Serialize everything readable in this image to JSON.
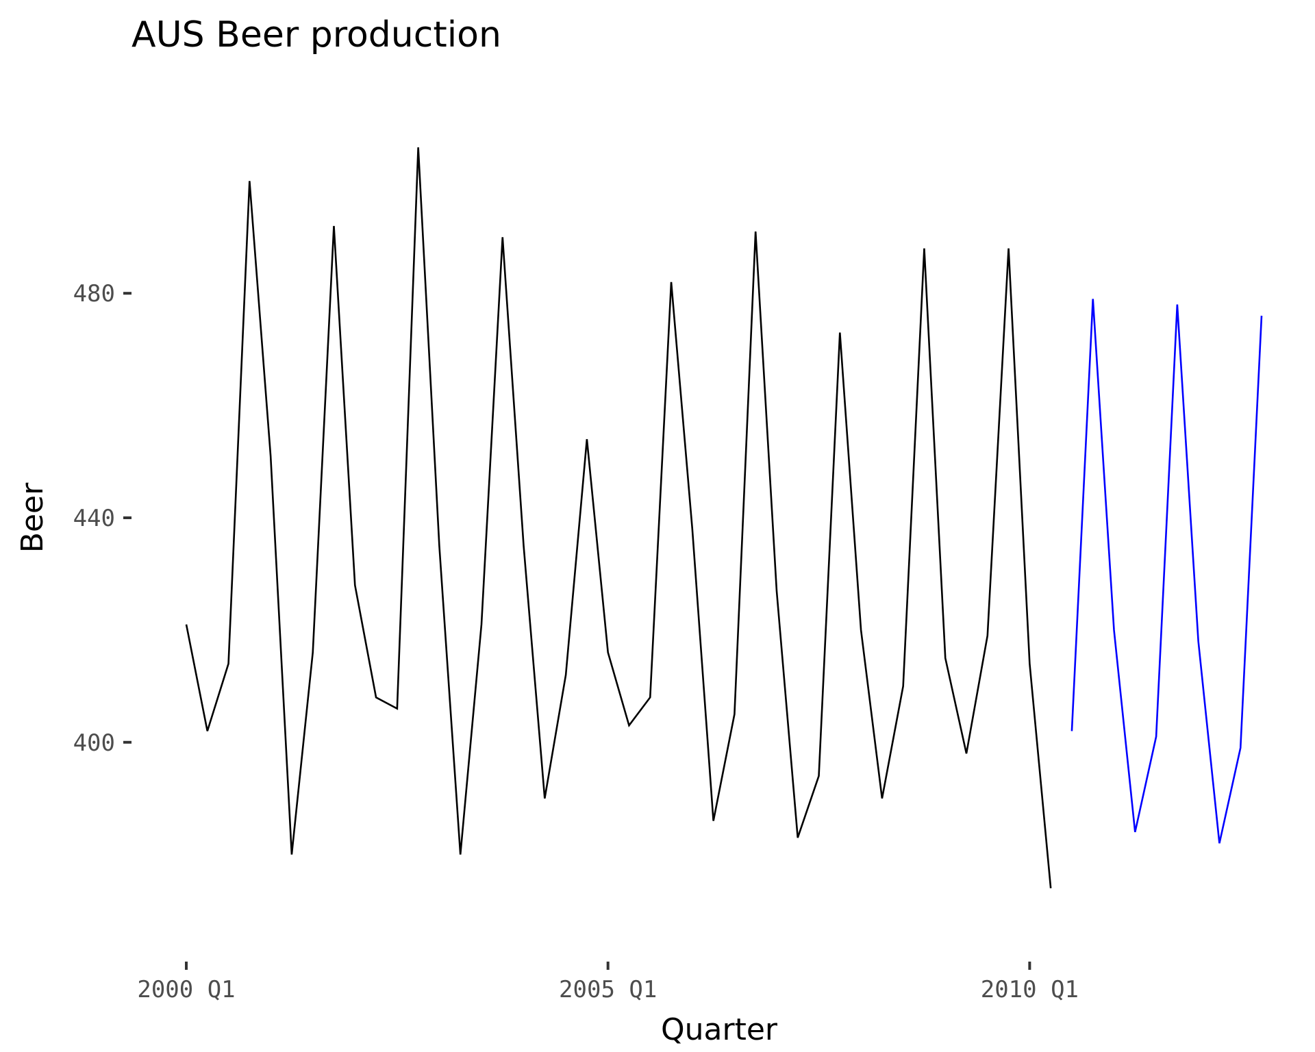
{
  "chart_data": {
    "type": "line",
    "title": "AUS Beer production",
    "xlabel": "Quarter",
    "ylabel": "Beer",
    "x_range": [
      2000.0,
      2012.75
    ],
    "ylim": [
      368,
      512
    ],
    "x_ticks": [
      {
        "value": 2000.0,
        "label": "2000 Q1"
      },
      {
        "value": 2005.0,
        "label": "2005 Q1"
      },
      {
        "value": 2010.0,
        "label": "2010 Q1"
      }
    ],
    "y_ticks": [
      {
        "value": 400,
        "label": "400"
      },
      {
        "value": 440,
        "label": "440"
      },
      {
        "value": 480,
        "label": "480"
      }
    ],
    "grid": false,
    "legend": "none",
    "series": [
      {
        "color": "#000000",
        "x": [
          2000.0,
          2000.25,
          2000.5,
          2000.75,
          2001.0,
          2001.25,
          2001.5,
          2001.75,
          2002.0,
          2002.25,
          2002.5,
          2002.75,
          2003.0,
          2003.25,
          2003.5,
          2003.75,
          2004.0,
          2004.25,
          2004.5,
          2004.75,
          2005.0,
          2005.25,
          2005.5,
          2005.75,
          2006.0,
          2006.25,
          2006.5,
          2006.75,
          2007.0,
          2007.25,
          2007.5,
          2007.75,
          2008.0,
          2008.25,
          2008.5,
          2008.75,
          2009.0,
          2009.25,
          2009.5,
          2009.75,
          2010.0,
          2010.25
        ],
        "values": [
          421,
          402,
          414,
          500,
          451,
          380,
          416,
          492,
          428,
          408,
          406,
          506,
          435,
          380,
          421,
          490,
          435,
          390,
          412,
          454,
          416,
          403,
          408,
          482,
          438,
          386,
          405,
          491,
          427,
          383,
          394,
          473,
          420,
          390,
          410,
          488,
          415,
          398,
          419,
          488,
          414,
          374
        ]
      },
      {
        "color": "#0000ff",
        "x": [
          2010.5,
          2010.75,
          2011.0,
          2011.25,
          2011.5,
          2011.75,
          2012.0,
          2012.25,
          2012.5,
          2012.75
        ],
        "values": [
          402,
          479,
          420,
          384,
          401,
          478,
          418,
          382,
          399,
          476
        ]
      }
    ]
  }
}
